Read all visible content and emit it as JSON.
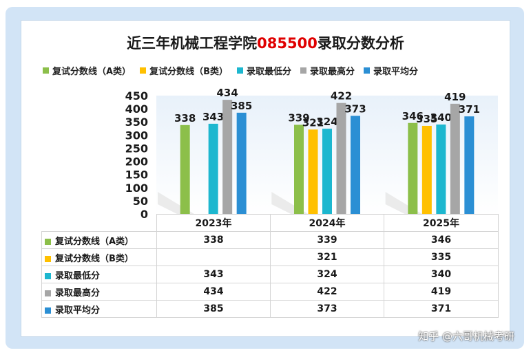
{
  "title_black": "近三年机械工程学院",
  "title_red": "085500",
  "title_black2": "录取分数分析",
  "watermark": "知乎 @六哥机械考研",
  "chart_data": {
    "type": "bar",
    "title": "近三年机械工程学院085500录取分数分析",
    "categories": [
      "2023年",
      "2024年",
      "2025年"
    ],
    "ylim": [
      0,
      450
    ],
    "yticks": [
      0,
      50,
      100,
      150,
      200,
      250,
      300,
      350,
      400,
      450
    ],
    "legend_position": "top",
    "series": [
      {
        "name": "复试分数线（A类）",
        "color": "#8cbf4a",
        "values": [
          338,
          339,
          346
        ]
      },
      {
        "name": "复试分数线（B类）",
        "color": "#ffc000",
        "values": [
          null,
          321,
          335
        ]
      },
      {
        "name": "录取最低分",
        "color": "#1db7cf",
        "values": [
          343,
          324,
          340
        ]
      },
      {
        "name": "录取最高分",
        "color": "#a6a6a6",
        "values": [
          434,
          422,
          419
        ]
      },
      {
        "name": "录取平均分",
        "color": "#2b8fd4",
        "values": [
          385,
          373,
          371
        ]
      }
    ]
  }
}
